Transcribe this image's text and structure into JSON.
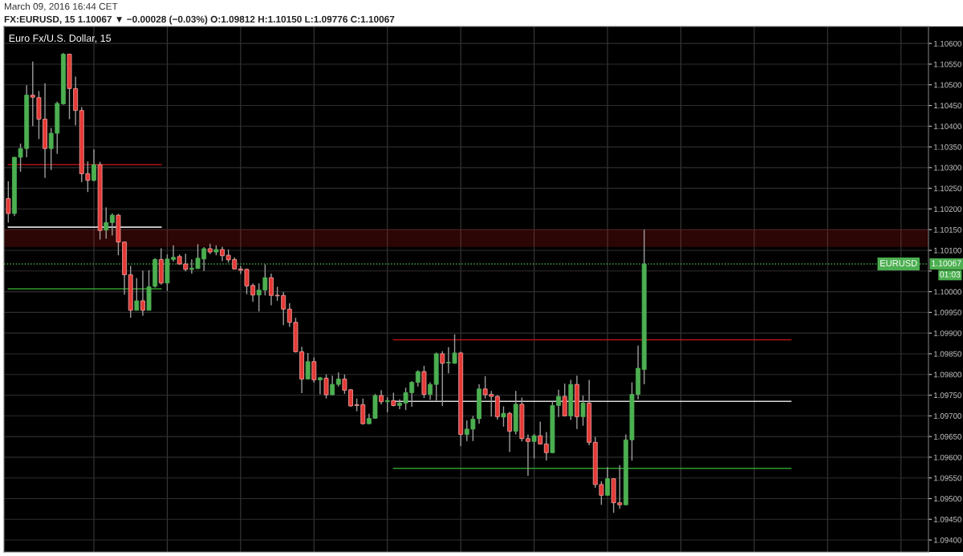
{
  "chart_data": {
    "type": "candlestick",
    "title": "FX:EURUSD, 15 1.10067 ▼ −0.00028 (−0.03%) O:1.09812 H:1.10150 L:1.09776 C:1.10067",
    "subtitle": "Euro Fx/U.S. Dollar, 15",
    "annotations": [
      "March 09, 2016 16:44 CET",
      "01:03",
      {
        "text": "1.10067",
        "y": 1.10067
      }
    ],
    "categories": [
      null,
      null,
      null,
      null,
      null,
      null,
      null,
      null,
      null,
      null,
      null,
      null,
      null,
      null,
      null,
      null,
      null,
      null,
      null,
      null,
      null,
      null,
      null,
      null,
      null,
      null,
      null,
      null,
      null,
      null,
      null,
      null,
      null,
      null,
      null,
      null,
      null,
      null,
      null,
      null,
      null,
      null,
      null,
      null,
      null,
      null,
      null,
      null,
      null,
      null,
      null,
      null,
      null,
      null,
      null,
      null,
      null,
      null,
      null,
      null,
      null,
      null,
      null,
      null,
      null,
      null,
      null,
      null,
      null,
      null,
      null,
      null,
      null,
      null,
      null,
      null,
      null,
      null,
      null,
      null,
      null,
      null,
      null,
      null,
      null,
      null,
      null,
      null,
      null,
      null,
      null,
      null,
      null,
      null,
      null,
      null,
      null,
      null,
      null,
      null,
      null,
      null,
      null,
      null,
      null,
      null,
      null,
      null,
      null,
      null,
      null,
      null,
      null,
      null,
      null,
      null,
      null,
      null,
      null,
      null,
      null,
      null,
      null,
      null,
      null,
      null,
      null,
      null,
      null,
      null,
      null,
      null,
      null,
      null,
      null,
      null,
      null,
      null,
      null,
      null,
      null,
      null,
      null,
      null,
      null,
      null,
      null,
      null,
      null,
      null,
      null
    ],
    "ohlc": [
      [
        1.10225,
        1.10267,
        1.10167,
        1.10189
      ],
      [
        1.10189,
        1.10325,
        1.10183,
        1.10325
      ],
      [
        1.10325,
        1.10358,
        1.1029,
        1.10346
      ],
      [
        1.10346,
        1.10499,
        1.10325,
        1.10475
      ],
      [
        1.10475,
        1.10556,
        1.104,
        1.1047
      ],
      [
        1.10469,
        1.10485,
        1.10369,
        1.10417
      ],
      [
        1.10417,
        1.10504,
        1.10275,
        1.10346
      ],
      [
        1.10346,
        1.10396,
        1.10294,
        1.10383
      ],
      [
        1.10383,
        1.10459,
        1.10333,
        1.10455
      ],
      [
        1.10454,
        1.10577,
        1.10452,
        1.10574
      ],
      [
        1.10574,
        1.10575,
        1.10417,
        1.10491
      ],
      [
        1.10491,
        1.1052,
        1.10402,
        1.10438
      ],
      [
        1.10438,
        1.10446,
        1.10265,
        1.10285
      ],
      [
        1.10285,
        1.10315,
        1.10241,
        1.10269
      ],
      [
        1.10269,
        1.10344,
        1.10267,
        1.10307
      ],
      [
        1.10307,
        1.10314,
        1.10126,
        1.10148
      ],
      [
        1.10149,
        1.10204,
        1.10128,
        1.10167
      ],
      [
        1.10167,
        1.10189,
        1.10136,
        1.10185
      ],
      [
        1.10185,
        1.10188,
        1.10088,
        1.1012
      ],
      [
        1.1012,
        1.10121,
        1.09993,
        1.10041
      ],
      [
        1.10041,
        1.10062,
        1.09937,
        1.09955
      ],
      [
        1.09955,
        1.10033,
        1.09955,
        1.09978
      ],
      [
        1.09978,
        1.10051,
        1.09942,
        1.09955
      ],
      [
        1.09955,
        1.10052,
        1.09955,
        1.10012
      ],
      [
        1.10013,
        1.10081,
        1.1001,
        1.10078
      ],
      [
        1.10078,
        1.10105,
        1.10017,
        1.10021
      ],
      [
        1.10021,
        1.1009,
        1.10002,
        1.10079
      ],
      [
        1.10078,
        1.10112,
        1.10073,
        1.10083
      ],
      [
        1.10085,
        1.1009,
        1.10065,
        1.10067
      ],
      [
        1.10067,
        1.10092,
        1.10049,
        1.10054
      ],
      [
        1.10054,
        1.10078,
        1.10044,
        1.10057
      ],
      [
        1.10056,
        1.10115,
        1.10055,
        1.10081
      ],
      [
        1.10079,
        1.10108,
        1.1005,
        1.10104
      ],
      [
        1.10104,
        1.10116,
        1.10091,
        1.10096
      ],
      [
        1.10096,
        1.10112,
        1.10088,
        1.10102
      ],
      [
        1.10102,
        1.10109,
        1.10074,
        1.10087
      ],
      [
        1.10088,
        1.10102,
        1.1007,
        1.10077
      ],
      [
        1.10078,
        1.10083,
        1.10054,
        1.10055
      ],
      [
        1.10055,
        1.10062,
        1.10043,
        1.10052
      ],
      [
        1.10054,
        1.10056,
        1.09994,
        1.10014
      ],
      [
        1.10015,
        1.1002,
        1.09976,
        1.09992
      ],
      [
        1.09992,
        1.1002,
        1.09952,
        1.10004
      ],
      [
        1.10004,
        1.10066,
        1.09991,
        1.10034
      ],
      [
        1.10034,
        1.10044,
        1.09967,
        1.09991
      ],
      [
        1.09991,
        1.10012,
        1.09978,
        1.0999
      ],
      [
        1.09991,
        1.09999,
        1.09919,
        1.09958
      ],
      [
        1.09958,
        1.09972,
        1.09915,
        1.09926
      ],
      [
        1.09926,
        1.09937,
        1.09853,
        1.09855
      ],
      [
        1.09855,
        1.09867,
        1.09755,
        1.09789
      ],
      [
        1.09789,
        1.09852,
        1.09788,
        1.09831
      ],
      [
        1.09831,
        1.09841,
        1.0978,
        1.09787
      ],
      [
        1.09787,
        1.09794,
        1.09752,
        1.09792
      ],
      [
        1.09791,
        1.098,
        1.09742,
        1.09751
      ],
      [
        1.09751,
        1.09797,
        1.0975,
        1.09776
      ],
      [
        1.09776,
        1.09805,
        1.09771,
        1.09789
      ],
      [
        1.09789,
        1.098,
        1.09753,
        1.09762
      ],
      [
        1.09763,
        1.09765,
        1.09722,
        1.09724
      ],
      [
        1.09727,
        1.09742,
        1.09711,
        1.09725
      ],
      [
        1.09727,
        1.09742,
        1.09679,
        1.09681
      ],
      [
        1.09681,
        1.09705,
        1.0968,
        1.09694
      ],
      [
        1.09694,
        1.09753,
        1.09693,
        1.09749
      ],
      [
        1.09749,
        1.09762,
        1.09728,
        1.09734
      ],
      [
        1.09734,
        1.09745,
        1.09709,
        1.09737
      ],
      [
        1.09737,
        1.09756,
        1.09723,
        1.09725
      ],
      [
        1.09725,
        1.0974,
        1.09716,
        1.09731
      ],
      [
        1.09731,
        1.09768,
        1.09714,
        1.09756
      ],
      [
        1.09756,
        1.09784,
        1.09722,
        1.09781
      ],
      [
        1.09781,
        1.0981,
        1.09771,
        1.09807
      ],
      [
        1.09807,
        1.09821,
        1.09743,
        1.09752
      ],
      [
        1.09752,
        1.09781,
        1.09739,
        1.09776
      ],
      [
        1.09776,
        1.09853,
        1.09737,
        1.0985
      ],
      [
        1.0985,
        1.09856,
        1.09724,
        1.09827
      ],
      [
        1.09828,
        1.09866,
        1.09803,
        1.09829
      ],
      [
        1.09827,
        1.09897,
        1.09826,
        1.09852
      ],
      [
        1.09852,
        1.09855,
        1.09627,
        1.09655
      ],
      [
        1.09655,
        1.09689,
        1.09639,
        1.09668
      ],
      [
        1.09668,
        1.097,
        1.09639,
        1.09692
      ],
      [
        1.09693,
        1.09776,
        1.09681,
        1.09765
      ],
      [
        1.09765,
        1.09796,
        1.09742,
        1.09751
      ],
      [
        1.09752,
        1.0976,
        1.09698,
        1.09747
      ],
      [
        1.09747,
        1.0975,
        1.09691,
        1.09698
      ],
      [
        1.09697,
        1.09723,
        1.09674,
        1.09706
      ],
      [
        1.09706,
        1.0971,
        1.09613,
        1.09663
      ],
      [
        1.09663,
        1.0976,
        1.09655,
        1.09728
      ],
      [
        1.09728,
        1.09744,
        1.09638,
        1.09645
      ],
      [
        1.09645,
        1.09655,
        1.09555,
        1.09638
      ],
      [
        1.09638,
        1.09656,
        1.09597,
        1.09652
      ],
      [
        1.09652,
        1.09686,
        1.09631,
        1.09632
      ],
      [
        1.09632,
        1.09661,
        1.09592,
        1.09611
      ],
      [
        1.09611,
        1.09736,
        1.0961,
        1.09725
      ],
      [
        1.09725,
        1.09763,
        1.09697,
        1.09747
      ],
      [
        1.09747,
        1.09778,
        1.09699,
        1.097
      ],
      [
        1.097,
        1.09787,
        1.0969,
        1.09776
      ],
      [
        1.09776,
        1.09797,
        1.09668,
        1.09698
      ],
      [
        1.09698,
        1.09749,
        1.09676,
        1.09731
      ],
      [
        1.09731,
        1.09787,
        1.09629,
        1.09636
      ],
      [
        1.09636,
        1.09649,
        1.09526,
        1.09534
      ],
      [
        1.09534,
        1.09542,
        1.09485,
        1.09508
      ],
      [
        1.09508,
        1.09576,
        1.09507,
        1.09548
      ],
      [
        1.09548,
        1.09549,
        1.09466,
        1.0949
      ],
      [
        1.0949,
        1.09581,
        1.09475,
        1.09485
      ],
      [
        1.09485,
        1.09655,
        1.09484,
        1.09642
      ],
      [
        1.09642,
        1.09781,
        1.09592,
        1.09752
      ],
      [
        1.09752,
        1.0987,
        1.0974,
        1.09815
      ],
      [
        1.09812,
        1.1015,
        1.09776,
        1.10067
      ],
      null,
      null,
      null,
      null,
      null,
      null,
      null,
      null,
      null,
      null,
      null,
      null,
      null,
      null,
      null,
      null,
      null,
      null,
      null,
      null,
      null,
      null,
      null,
      null,
      null,
      null,
      null,
      null,
      null,
      null,
      null,
      null,
      null,
      null,
      null,
      null,
      null,
      null,
      null,
      null,
      null,
      null,
      null,
      null,
      null,
      null
    ],
    "colors": [
      "#e53935",
      "#4caf50",
      "#4caf50",
      "#4caf50",
      "#e53935",
      "#e53935",
      "#e53935",
      "#4caf50",
      "#4caf50",
      "#4caf50",
      "#e53935",
      "#e53935",
      "#e53935",
      "#e53935",
      "#4caf50",
      "#e53935",
      "#4caf50",
      "#4caf50",
      "#e53935",
      "#e53935",
      "#e53935",
      "#4caf50",
      "#e53935",
      "#4caf50",
      "#4caf50",
      "#e53935",
      "#4caf50",
      "#4caf50",
      "#e53935",
      "#e53935",
      "#4caf50",
      "#4caf50",
      "#4caf50",
      "#e53935",
      "#4caf50",
      "#e53935",
      "#e53935",
      "#e53935",
      "#e53935",
      "#e53935",
      "#e53935",
      "#4caf50",
      "#4caf50",
      "#e53935",
      "#e53935",
      "#e53935",
      "#e53935",
      "#e53935",
      "#e53935",
      "#4caf50",
      "#e53935",
      "#4caf50",
      "#e53935",
      "#4caf50",
      "#4caf50",
      "#e53935",
      "#e53935",
      "#e53935",
      "#e53935",
      "#4caf50",
      "#4caf50",
      "#e53935",
      "#4caf50",
      "#e53935",
      "#4caf50",
      "#4caf50",
      "#4caf50",
      "#4caf50",
      "#e53935",
      "#4caf50",
      "#4caf50",
      "#e53935",
      "#4caf50",
      "#4caf50",
      "#e53935",
      "#4caf50",
      "#4caf50",
      "#4caf50",
      "#e53935",
      "#e53935",
      "#e53935",
      "#4caf50",
      "#e53935",
      "#4caf50",
      "#e53935",
      "#e53935",
      "#4caf50",
      "#e53935",
      "#e53935",
      "#4caf50",
      "#4caf50",
      "#e53935",
      "#4caf50",
      "#e53935",
      "#4caf50",
      "#e53935",
      "#e53935",
      "#e53935",
      "#4caf50",
      "#e53935",
      "#e53935",
      "#4caf50",
      "#4caf50",
      "#4caf50",
      "#4caf50",
      null,
      null,
      null,
      null,
      null,
      null,
      null,
      null,
      null,
      null,
      null,
      null,
      null,
      null,
      null,
      null,
      null,
      null,
      null,
      null,
      null,
      null,
      null,
      null,
      null,
      null,
      null,
      null,
      null,
      null,
      null,
      null,
      null,
      null,
      null,
      null,
      null,
      null,
      null,
      null,
      null,
      null,
      null,
      null,
      null,
      null
    ],
    "series": [
      {
        "type": "line",
        "color": "#b01515",
        "values": [
          1.10307,
          1.10307,
          1.10307,
          1.10307,
          1.10307,
          1.10307,
          1.10307,
          1.10307,
          1.10307,
          1.10307,
          1.10307,
          1.10307,
          1.10307,
          1.10307,
          1.10307,
          1.10307,
          1.10307,
          1.10307,
          1.10307,
          1.10307,
          1.10307,
          1.10307,
          1.10307,
          1.10307,
          1.10307,
          1.10307,
          null,
          null,
          null,
          null,
          null,
          null,
          null,
          null,
          null,
          null,
          null,
          null,
          null,
          null,
          null,
          null,
          null,
          null,
          null,
          null,
          null,
          null,
          null,
          null,
          null,
          null,
          null,
          null,
          null,
          null,
          null,
          null,
          null,
          null,
          null,
          null,
          null,
          null,
          null,
          null,
          null,
          null,
          null,
          null,
          null,
          null,
          null,
          null,
          null,
          null,
          null,
          null,
          null,
          null,
          null,
          null,
          null,
          null,
          null,
          null,
          null,
          null,
          null,
          null,
          null,
          null,
          null,
          null,
          null,
          null,
          null,
          null,
          null,
          null,
          null,
          null,
          null,
          null,
          null,
          null,
          null,
          null,
          null,
          null,
          null,
          null,
          null,
          null,
          null,
          null,
          null,
          null,
          null,
          null,
          null,
          null,
          null,
          null,
          null,
          null,
          null,
          null,
          null,
          null,
          null,
          null,
          null,
          null,
          null,
          null,
          null,
          null,
          null,
          null,
          null,
          null,
          null,
          null,
          null,
          null,
          null,
          null,
          null,
          null,
          null
        ]
      },
      {
        "type": "line",
        "color": "#d8d8d8",
        "values": [
          1.10156,
          1.10156,
          1.10156,
          1.10156,
          1.10156,
          1.10156,
          1.10156,
          1.10156,
          1.10156,
          1.10156,
          1.10156,
          1.10156,
          1.10156,
          1.10156,
          1.10156,
          1.10156,
          1.10156,
          1.10156,
          1.10156,
          1.10156,
          1.10156,
          1.10156,
          1.10156,
          1.10156,
          1.10156,
          1.10156,
          null,
          null,
          null,
          null,
          null,
          null,
          null,
          null,
          null,
          null,
          null,
          null,
          null,
          null,
          null,
          null,
          null,
          null,
          null,
          null,
          null,
          null,
          null,
          null,
          null,
          null,
          null,
          null,
          null,
          null,
          null,
          null,
          null,
          null,
          null,
          null,
          null,
          null,
          null,
          null,
          null,
          null,
          null,
          null,
          null,
          null,
          null,
          null,
          null,
          null,
          null,
          null,
          null,
          null,
          null,
          null,
          null,
          null,
          null,
          null,
          null,
          null,
          null,
          null,
          null,
          null,
          null,
          null,
          null,
          null,
          null,
          null,
          null,
          null,
          null,
          null,
          null,
          null,
          null,
          null,
          null,
          null,
          null,
          null,
          null,
          null,
          null,
          null,
          null,
          null,
          null,
          null,
          null,
          null,
          null,
          null,
          null,
          null,
          null,
          null,
          null,
          null,
          null,
          null,
          null,
          null,
          null,
          null,
          null,
          null,
          null,
          null,
          null,
          null,
          null,
          null,
          null,
          null,
          null,
          null,
          null,
          null,
          null,
          null,
          null
        ]
      },
      {
        "type": "line",
        "color": "#2e9b2e",
        "values": [
          1.10007,
          1.10007,
          1.10007,
          1.10007,
          1.10007,
          1.10007,
          1.10007,
          1.10007,
          1.10007,
          1.10007,
          1.10007,
          1.10007,
          1.10007,
          1.10007,
          1.10007,
          1.10007,
          1.10007,
          1.10007,
          1.10007,
          1.10007,
          1.10007,
          1.10007,
          1.10007,
          1.10007,
          1.10007,
          1.10007,
          null,
          null,
          null,
          null,
          null,
          null,
          null,
          null,
          null,
          null,
          null,
          null,
          null,
          null,
          null,
          null,
          null,
          null,
          null,
          null,
          null,
          null,
          null,
          null,
          null,
          null,
          null,
          null,
          null,
          null,
          null,
          null,
          null,
          null,
          null,
          null,
          null,
          null,
          null,
          null,
          null,
          null,
          null,
          null,
          null,
          null,
          null,
          null,
          null,
          null,
          null,
          null,
          null,
          null,
          null,
          null,
          null,
          null,
          null,
          null,
          null,
          null,
          null,
          null,
          null,
          null,
          null,
          null,
          null,
          null,
          null,
          null,
          null,
          null,
          null,
          null,
          null,
          null,
          null,
          null,
          null,
          null,
          null,
          null,
          null,
          null,
          null,
          null,
          null,
          null,
          null,
          null,
          null,
          null,
          null,
          null,
          null,
          null,
          null,
          null,
          null,
          null,
          null,
          null,
          null,
          null,
          null,
          null,
          null,
          null,
          null,
          null,
          null,
          null,
          null,
          null,
          null,
          null,
          null,
          null,
          null,
          null,
          null,
          null,
          null
        ]
      },
      {
        "type": "line",
        "color": "#b01515",
        "values": [
          null,
          null,
          null,
          null,
          null,
          null,
          null,
          null,
          null,
          null,
          null,
          null,
          null,
          null,
          null,
          null,
          null,
          null,
          null,
          null,
          null,
          null,
          null,
          null,
          null,
          null,
          null,
          null,
          null,
          null,
          null,
          null,
          null,
          null,
          null,
          null,
          null,
          null,
          null,
          null,
          null,
          null,
          null,
          null,
          null,
          null,
          null,
          null,
          null,
          null,
          null,
          null,
          null,
          null,
          null,
          null,
          null,
          null,
          null,
          null,
          null,
          null,
          null,
          1.09884,
          1.09884,
          1.09884,
          1.09884,
          1.09884,
          1.09884,
          1.09884,
          1.09884,
          1.09884,
          1.09884,
          1.09884,
          1.09884,
          1.09884,
          1.09884,
          1.09884,
          1.09884,
          1.09884,
          1.09884,
          1.09884,
          1.09884,
          1.09884,
          1.09884,
          1.09884,
          1.09884,
          1.09884,
          1.09884,
          1.09884,
          1.09884,
          1.09884,
          1.09884,
          1.09884,
          1.09884,
          1.09884,
          1.09884,
          1.09884,
          1.09884,
          1.09884,
          1.09884,
          1.09884,
          1.09884,
          1.09884,
          1.09884,
          1.09884,
          1.09884,
          1.09884,
          1.09884,
          1.09884,
          1.09884,
          1.09884,
          1.09884,
          1.09884,
          1.09884,
          1.09884,
          1.09884,
          1.09884,
          1.09884,
          1.09884,
          1.09884,
          1.09884,
          1.09884,
          1.09884,
          1.09884,
          1.09884,
          1.09884,
          1.09884,
          1.09884,
          null,
          null,
          null,
          null,
          null,
          null,
          null,
          null,
          null,
          null,
          null,
          null,
          null,
          null,
          null,
          null,
          null,
          null,
          null,
          null,
          null,
          null
        ]
      },
      {
        "type": "line",
        "color": "#d8d8d8",
        "values": [
          null,
          null,
          null,
          null,
          null,
          null,
          null,
          null,
          null,
          null,
          null,
          null,
          null,
          null,
          null,
          null,
          null,
          null,
          null,
          null,
          null,
          null,
          null,
          null,
          null,
          null,
          null,
          null,
          null,
          null,
          null,
          null,
          null,
          null,
          null,
          null,
          null,
          null,
          null,
          null,
          null,
          null,
          null,
          null,
          null,
          null,
          null,
          null,
          null,
          null,
          null,
          null,
          null,
          null,
          null,
          null,
          null,
          null,
          null,
          null,
          null,
          null,
          null,
          1.09735,
          1.09735,
          1.09735,
          1.09735,
          1.09735,
          1.09735,
          1.09735,
          1.09735,
          1.09735,
          1.09735,
          1.09735,
          1.09735,
          1.09735,
          1.09735,
          1.09735,
          1.09735,
          1.09735,
          1.09735,
          1.09735,
          1.09735,
          1.09735,
          1.09735,
          1.09735,
          1.09735,
          1.09735,
          1.09735,
          1.09735,
          1.09735,
          1.09735,
          1.09735,
          1.09735,
          1.09735,
          1.09735,
          1.09735,
          1.09735,
          1.09735,
          1.09735,
          1.09735,
          1.09735,
          1.09735,
          1.09735,
          1.09735,
          1.09735,
          1.09735,
          1.09735,
          1.09735,
          1.09735,
          1.09735,
          1.09735,
          1.09735,
          1.09735,
          1.09735,
          1.09735,
          1.09735,
          1.09735,
          1.09735,
          1.09735,
          1.09735,
          1.09735,
          1.09735,
          1.09735,
          1.09735,
          1.09735,
          1.09735,
          1.09735,
          1.09735,
          null,
          null,
          null,
          null,
          null,
          null,
          null,
          null,
          null,
          null,
          null,
          null,
          null,
          null,
          null,
          null,
          null,
          null,
          null,
          null,
          null,
          null
        ]
      },
      {
        "type": "line",
        "color": "#2e9b2e",
        "values": [
          null,
          null,
          null,
          null,
          null,
          null,
          null,
          null,
          null,
          null,
          null,
          null,
          null,
          null,
          null,
          null,
          null,
          null,
          null,
          null,
          null,
          null,
          null,
          null,
          null,
          null,
          null,
          null,
          null,
          null,
          null,
          null,
          null,
          null,
          null,
          null,
          null,
          null,
          null,
          null,
          null,
          null,
          null,
          null,
          null,
          null,
          null,
          null,
          null,
          null,
          null,
          null,
          null,
          null,
          null,
          null,
          null,
          null,
          null,
          null,
          null,
          null,
          null,
          1.09573,
          1.09573,
          1.09573,
          1.09573,
          1.09573,
          1.09573,
          1.09573,
          1.09573,
          1.09573,
          1.09573,
          1.09573,
          1.09573,
          1.09573,
          1.09573,
          1.09573,
          1.09573,
          1.09573,
          1.09573,
          1.09573,
          1.09573,
          1.09573,
          1.09573,
          1.09573,
          1.09573,
          1.09573,
          1.09573,
          1.09573,
          1.09573,
          1.09573,
          1.09573,
          1.09573,
          1.09573,
          1.09573,
          1.09573,
          1.09573,
          1.09573,
          1.09573,
          1.09573,
          1.09573,
          1.09573,
          1.09573,
          1.09573,
          1.09573,
          1.09573,
          1.09573,
          1.09573,
          1.09573,
          1.09573,
          1.09573,
          1.09573,
          1.09573,
          1.09573,
          1.09573,
          1.09573,
          1.09573,
          1.09573,
          1.09573,
          1.09573,
          1.09573,
          1.09573,
          1.09573,
          1.09573,
          1.09573,
          1.09573,
          1.09573,
          1.09573,
          null,
          null,
          null,
          null,
          null,
          null,
          null,
          null,
          null,
          null,
          null,
          null,
          null,
          null,
          null,
          null,
          null,
          null,
          null,
          null,
          null,
          null
        ]
      }
    ],
    "bands": [
      {
        "axis": "y",
        "from": 1.1011,
        "to": 1.1015,
        "color": "#b01515"
      }
    ],
    "ref_lines": [
      {
        "axis": "y",
        "value": 1.10067,
        "label": "EURUSD",
        "color": "#4caf50",
        "line_style": "dotted"
      }
    ],
    "ylim": [
      1.09371,
      1.10641
    ],
    "yticks": [
      {
        "value": 1.094,
        "label": "1.09400"
      },
      {
        "value": 1.0945,
        "label": "1.09450"
      },
      {
        "value": 1.095,
        "label": "1.09500"
      },
      {
        "value": 1.0955,
        "label": "1.09550"
      },
      {
        "value": 1.096,
        "label": "1.09600"
      },
      {
        "value": 1.0965,
        "label": "1.09650"
      },
      {
        "value": 1.097,
        "label": "1.09700"
      },
      {
        "value": 1.0975,
        "label": "1.09750"
      },
      {
        "value": 1.098,
        "label": "1.09800"
      },
      {
        "value": 1.0985,
        "label": "1.09850"
      },
      {
        "value": 1.099,
        "label": "1.09900"
      },
      {
        "value": 1.0995,
        "label": "1.09950"
      },
      {
        "value": 1.1,
        "label": "1.10000"
      },
      {
        "value": 1.1005,
        "label": null
      },
      {
        "value": 1.101,
        "label": "1.10100"
      },
      {
        "value": 1.1015,
        "label": "1.10150"
      },
      {
        "value": 1.102,
        "label": "1.10200"
      },
      {
        "value": 1.1025,
        "label": "1.10250"
      },
      {
        "value": 1.103,
        "label": "1.10300"
      },
      {
        "value": 1.1035,
        "label": "1.10350"
      },
      {
        "value": 1.104,
        "label": "1.10400"
      },
      {
        "value": 1.1045,
        "label": "1.10450"
      },
      {
        "value": 1.105,
        "label": "1.10500"
      },
      {
        "value": 1.1055,
        "label": "1.10550"
      },
      {
        "value": 1.106,
        "label": "1.10600"
      }
    ],
    "grid": true,
    "tick_labels": "y"
  }
}
